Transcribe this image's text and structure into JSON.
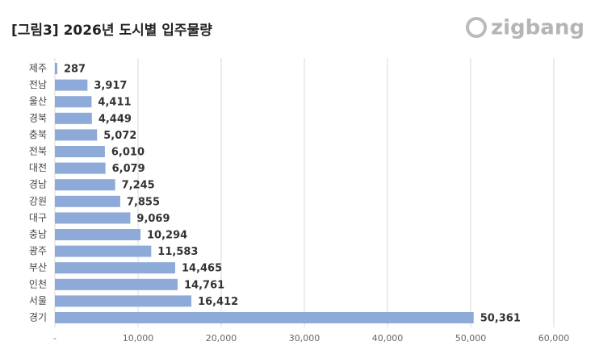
{
  "logo": "zigbang",
  "chart_data": {
    "type": "bar",
    "orientation": "horizontal",
    "title": "[그림3] 2026년 도시별 입주물량",
    "categories": [
      "제주",
      "전남",
      "울산",
      "경북",
      "충북",
      "전북",
      "대전",
      "경남",
      "강원",
      "대구",
      "충남",
      "광주",
      "부산",
      "인천",
      "서울",
      "경기"
    ],
    "values": [
      287,
      3917,
      4411,
      4449,
      5072,
      6010,
      6079,
      7245,
      7855,
      9069,
      10294,
      11583,
      14465,
      14761,
      16412,
      50361
    ],
    "value_labels": [
      "287",
      "3,917",
      "4,411",
      "4,449",
      "5,072",
      "6,010",
      "6,079",
      "7,245",
      "7,855",
      "9,069",
      "10,294",
      "11,583",
      "14,465",
      "14,761",
      "16,412",
      "50,361"
    ],
    "color": "#8eaad9",
    "xlim": [
      0,
      60000
    ],
    "xticks": [
      {
        "value": 0,
        "label": "-"
      },
      {
        "value": 10000,
        "label": "10,000"
      },
      {
        "value": 20000,
        "label": "20,000"
      },
      {
        "value": 30000,
        "label": "30,000"
      },
      {
        "value": 40000,
        "label": "40,000"
      },
      {
        "value": 50000,
        "label": "50,000"
      },
      {
        "value": 60000,
        "label": "60,000"
      }
    ],
    "grid": true
  }
}
